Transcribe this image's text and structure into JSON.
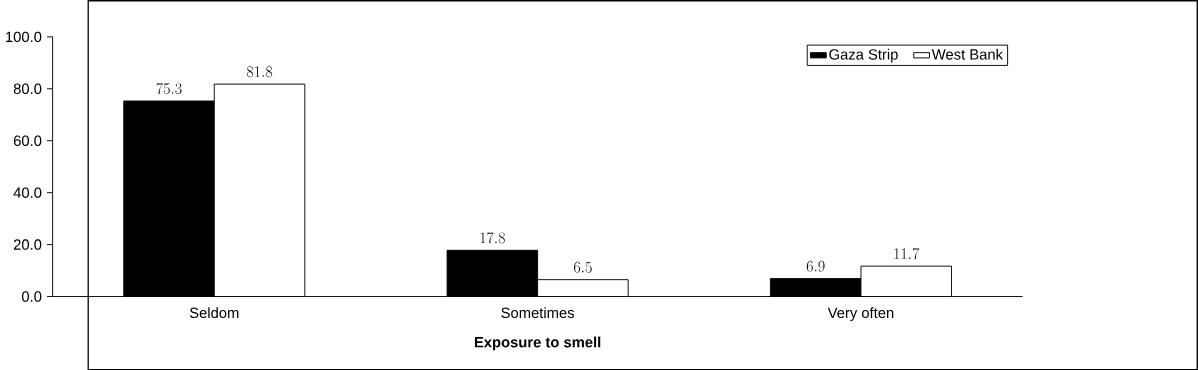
{
  "chart_data": {
    "type": "bar",
    "xlabel": "Exposure to smell",
    "categories": [
      "Seldom",
      "Sometimes",
      "Very often"
    ],
    "series": [
      {
        "name": "Gaza Strip",
        "color": "#000000",
        "values": [
          75.3,
          17.8,
          6.9
        ]
      },
      {
        "name": "West Bank",
        "color": "#ffffff",
        "values": [
          81.8,
          6.5,
          11.7
        ]
      }
    ],
    "ylim": [
      0,
      100
    ],
    "yticks": [
      {
        "value": 0,
        "label": "0.0"
      },
      {
        "value": 20,
        "label": "20.0"
      },
      {
        "value": 40,
        "label": "40.0"
      },
      {
        "value": 60,
        "label": "60.0"
      },
      {
        "value": 80,
        "label": "80.0"
      },
      {
        "value": 100,
        "label": "100.0"
      }
    ],
    "data_labels": true,
    "legend": "top right",
    "grid": false
  }
}
